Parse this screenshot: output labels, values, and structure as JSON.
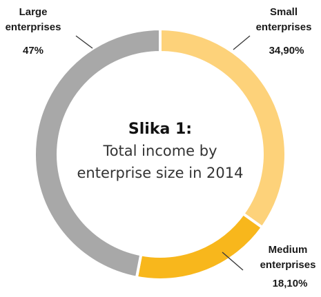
{
  "chart_data": {
    "type": "pie",
    "title": "Slika 1:",
    "subtitle": [
      "Total income by",
      "enterprise size in 2014"
    ],
    "slices": [
      {
        "name": [
          "Small",
          "enterprises"
        ],
        "value": 34.9,
        "label": "34,90%",
        "color": "#fdd27a"
      },
      {
        "name": [
          "Medium",
          "enterprises"
        ],
        "value": 18.1,
        "label": "18,10%",
        "color": "#f8b71c"
      },
      {
        "name": [
          "Large",
          "enterprises"
        ],
        "value": 47,
        "label": "47%",
        "color": "#a8a8a8"
      }
    ]
  }
}
